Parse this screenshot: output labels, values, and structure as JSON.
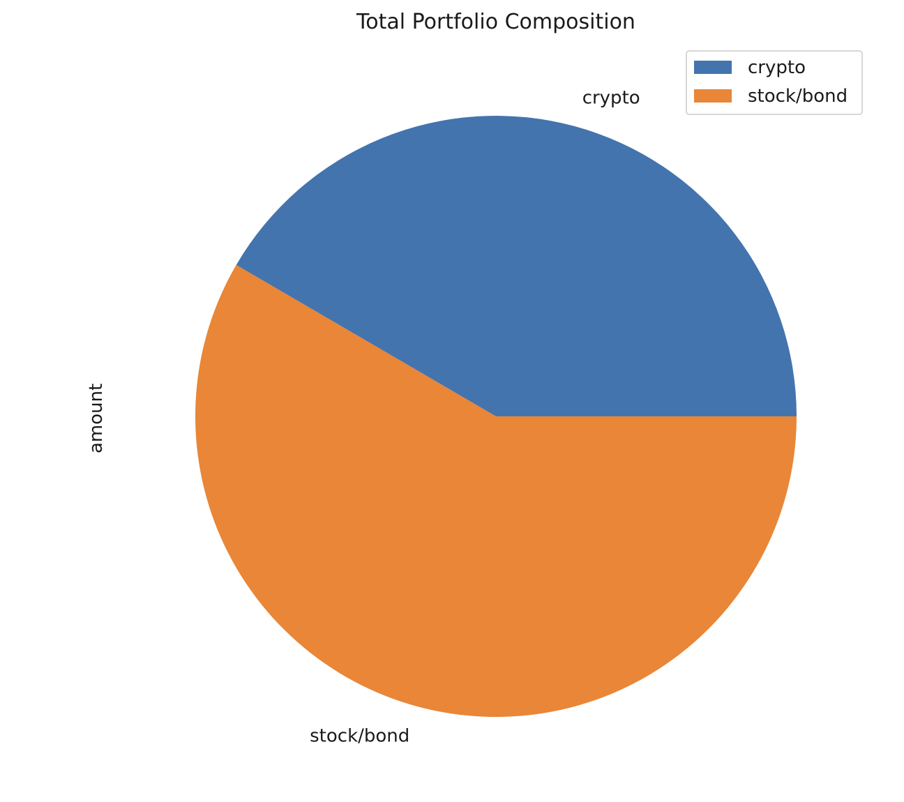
{
  "chart_data": {
    "type": "pie",
    "title": "Total Portfolio Composition",
    "ylabel": "amount",
    "categories": [
      "crypto",
      "stock/bond"
    ],
    "values": [
      41.6,
      58.4
    ],
    "colors": [
      "#4374ae",
      "#e98637"
    ],
    "start_angle": 0,
    "direction": "counterclockwise",
    "legend": {
      "placement": "top-right",
      "entries": [
        "crypto",
        "stock/bond"
      ]
    }
  }
}
